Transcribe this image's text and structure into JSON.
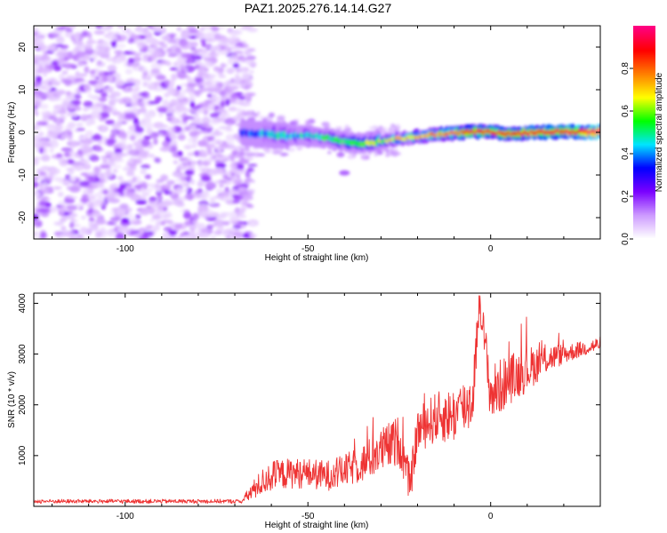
{
  "title": "PAZ1.2025.276.14.14.G27",
  "chart_data": [
    {
      "type": "heatmap",
      "xlabel": "Height of straight line (km)",
      "ylabel": "Frequency (Hz)",
      "xlim": [
        -125,
        30
      ],
      "ylim": [
        -25,
        25
      ],
      "xticks": [
        -100,
        -50,
        0
      ],
      "yticks": [
        -20,
        -10,
        0,
        10,
        20
      ],
      "colorbar": {
        "label": "Normalized spectral amplitude",
        "range": [
          0.0,
          1.0
        ],
        "ticks": [
          0.0,
          0.2,
          0.4,
          0.6,
          0.8
        ],
        "colors": [
          "#ffffff",
          "#cc99ff",
          "#7a00ff",
          "#0000ff",
          "#00e5ff",
          "#00ff00",
          "#ffff00",
          "#ff7f00",
          "#ff0000",
          "#ff0080"
        ]
      },
      "noise_region_x": [
        -125,
        -68
      ],
      "signal_ridge": {
        "x": [
          -68,
          -60,
          -55,
          -50,
          -45,
          -40,
          -35,
          -30,
          -25,
          -20,
          -15,
          -10,
          -5,
          0,
          5,
          10,
          15,
          20,
          25,
          30
        ],
        "freq": [
          0.0,
          -0.5,
          -0.8,
          -0.7,
          -1.3,
          -2.2,
          -2.6,
          -2.2,
          -1.5,
          -1.0,
          -0.5,
          -0.2,
          0.1,
          0.1,
          -0.4,
          -0.1,
          0.0,
          0.2,
          0.1,
          0.1
        ],
        "amplitude": [
          0.3,
          0.45,
          0.45,
          0.45,
          0.5,
          0.55,
          0.6,
          0.65,
          0.7,
          0.72,
          0.75,
          0.8,
          0.85,
          0.85,
          0.85,
          0.88,
          0.9,
          0.9,
          0.95,
          0.95
        ]
      },
      "isolated_blob": {
        "x": -40,
        "freq": -9.5,
        "amplitude": 0.15
      }
    },
    {
      "type": "line",
      "xlabel": "Height of straight line (km)",
      "ylabel": "SNR (10 * v/v)",
      "xlim": [
        -125,
        30
      ],
      "ylim": [
        0,
        4200
      ],
      "xticks": [
        -100,
        -50,
        0
      ],
      "yticks": [
        1000,
        2000,
        3000,
        4000
      ],
      "series": [
        {
          "name": "SNR",
          "color": "#ee3333",
          "x": [
            -125,
            -110,
            -95,
            -80,
            -68,
            -66,
            -63,
            -60,
            -55,
            -50,
            -45,
            -40,
            -35,
            -30,
            -25,
            -22,
            -20,
            -15,
            -10,
            -5,
            -3,
            0,
            5,
            10,
            15,
            20,
            25,
            30
          ],
          "y": [
            100,
            100,
            100,
            100,
            100,
            250,
            450,
            600,
            650,
            650,
            600,
            700,
            850,
            1100,
            1300,
            400,
            1500,
            1750,
            1800,
            2100,
            4100,
            2200,
            2500,
            2700,
            2900,
            3000,
            3100,
            3200
          ],
          "jitter": [
            40,
            40,
            40,
            40,
            40,
            160,
            250,
            300,
            300,
            300,
            300,
            320,
            380,
            450,
            500,
            350,
            450,
            500,
            550,
            600,
            300,
            600,
            500,
            450,
            300,
            200,
            150,
            150
          ]
        }
      ]
    }
  ]
}
